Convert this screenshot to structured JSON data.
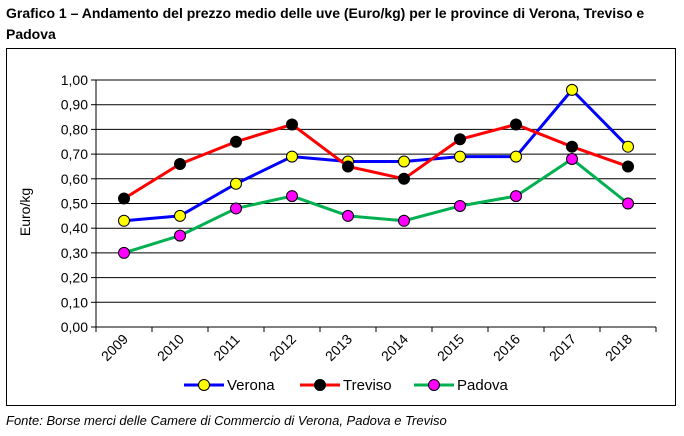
{
  "title": "Grafico 1 – Andamento del prezzo medio delle uve (Euro/kg) per le province di Verona, Treviso e Padova",
  "source": "Fonte: Borse merci delle Camere di Commercio di Verona, Padova e Treviso",
  "chart_data": {
    "type": "line",
    "categories": [
      "2009",
      "2010",
      "2011",
      "2012",
      "2013",
      "2014",
      "2015",
      "2016",
      "2017",
      "2018"
    ],
    "series": [
      {
        "name": "Verona",
        "line_color": "#0000ff",
        "marker_color": "#ffff00",
        "values": [
          0.43,
          0.45,
          0.58,
          0.69,
          0.67,
          0.67,
          0.69,
          0.69,
          0.96,
          0.73
        ]
      },
      {
        "name": "Treviso",
        "line_color": "#ff0000",
        "marker_color": "#000000",
        "values": [
          0.52,
          0.66,
          0.75,
          0.82,
          0.65,
          0.6,
          0.76,
          0.82,
          0.73,
          0.65
        ]
      },
      {
        "name": "Padova",
        "line_color": "#00b050",
        "marker_color": "#ff00ff",
        "values": [
          0.3,
          0.37,
          0.48,
          0.53,
          0.45,
          0.43,
          0.49,
          0.53,
          0.68,
          0.5
        ]
      }
    ],
    "ylabel": "Euro/kg",
    "xlabel": "",
    "ylim": [
      0,
      1
    ],
    "yticks": [
      "0,00",
      "0,10",
      "0,20",
      "0,30",
      "0,40",
      "0,50",
      "0,60",
      "0,70",
      "0,80",
      "0,90",
      "1,00"
    ],
    "grid": true,
    "legend_position": "bottom"
  }
}
